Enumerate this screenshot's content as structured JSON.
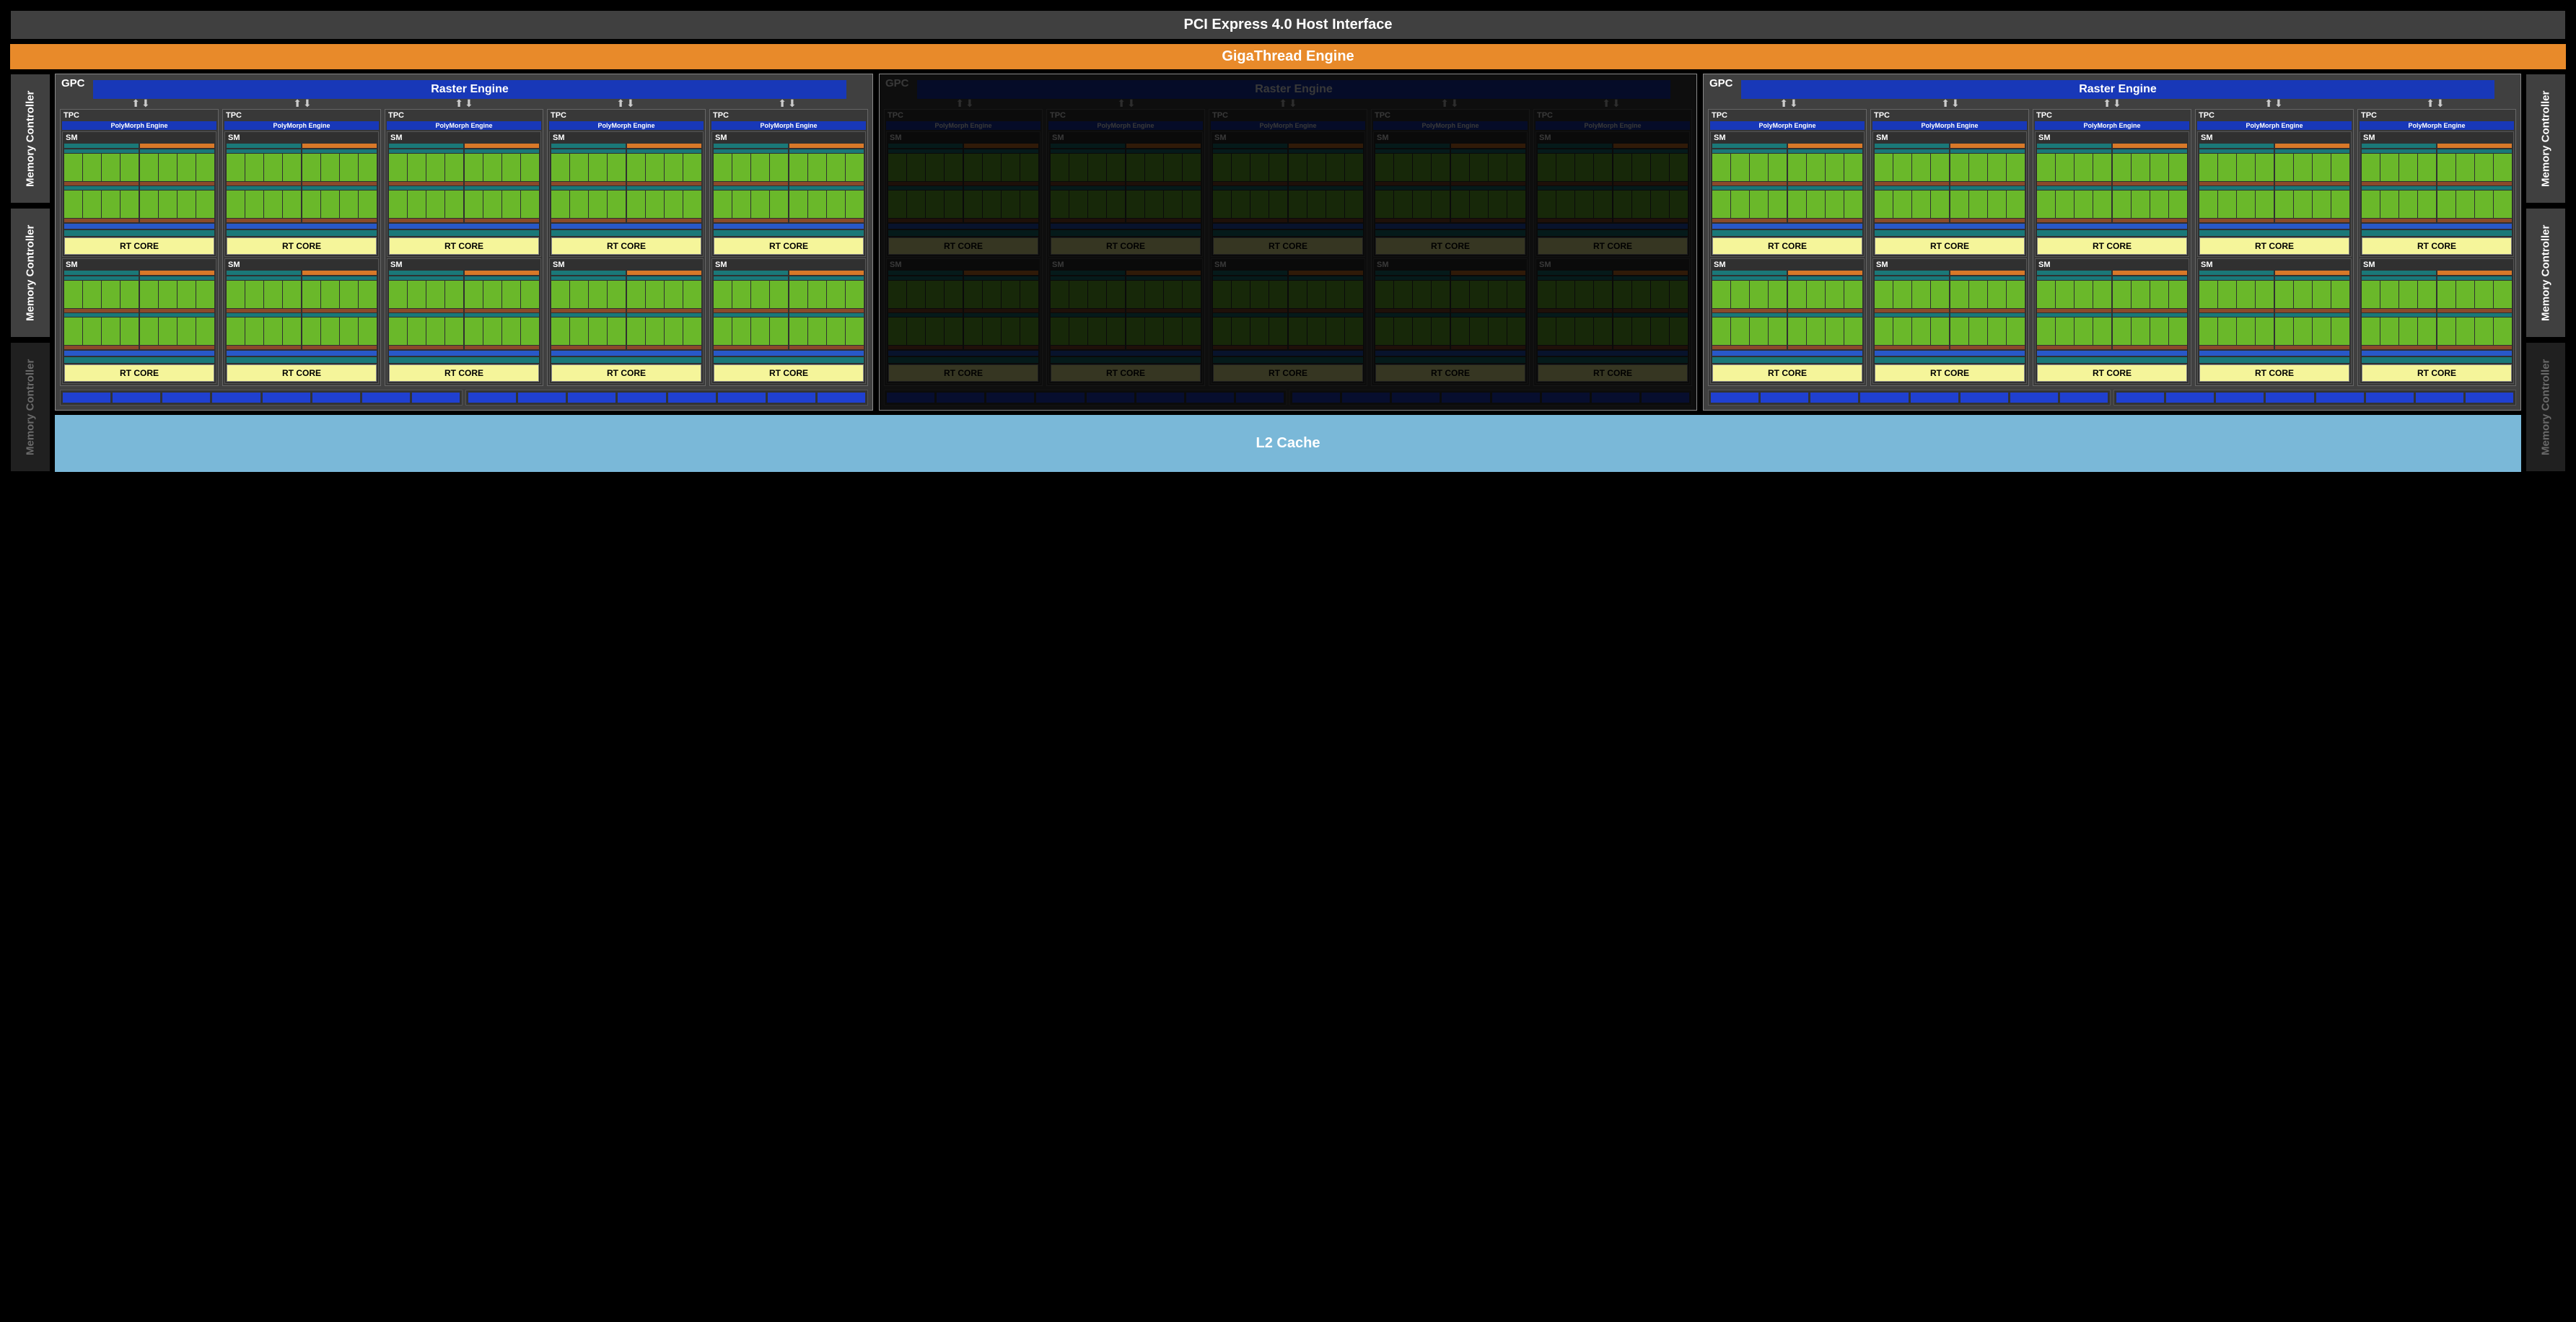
{
  "colors": {
    "pci_bg": "#404040",
    "gigathread_bg": "#e88a2a",
    "gigathread_text": "#ffffff",
    "raster_bg": "#1838b8",
    "polymorph_bg": "#1838b8",
    "l2_bg": "#7ab8d8",
    "l2_text": "#ffffff",
    "rtcore_bg": "#f5f59a",
    "rtcore_text": "#000000",
    "core_green": "#6ab82a",
    "core_teal": "#1a7878",
    "core_orange": "#d87828",
    "core_brown": "#8a4a2a",
    "core_blue": "#2858c8",
    "unit_blue": "#2040d0",
    "memctrl_bg": "#404040",
    "memctrl_dim": "#202020",
    "gpc_bg": "#404040"
  },
  "labels": {
    "pci": "PCI Express 4.0 Host Interface",
    "gigathread": "GigaThread Engine",
    "gpc": "GPC",
    "raster": "Raster Engine",
    "tpc": "TPC",
    "polymorph": "PolyMorph Engine",
    "sm": "SM",
    "rtcore": "RT CORE",
    "l2": "L2 Cache",
    "memctrl": "Memory Controller"
  },
  "layout": {
    "gpc_count": 3,
    "gpc_dimmed_index": 1,
    "tpc_per_gpc": 5,
    "sm_per_tpc": 2,
    "unitgroups": 2,
    "units_per_group": 8,
    "memctrl_left": [
      false,
      false,
      true
    ],
    "memctrl_right": [
      false,
      false,
      true
    ]
  }
}
